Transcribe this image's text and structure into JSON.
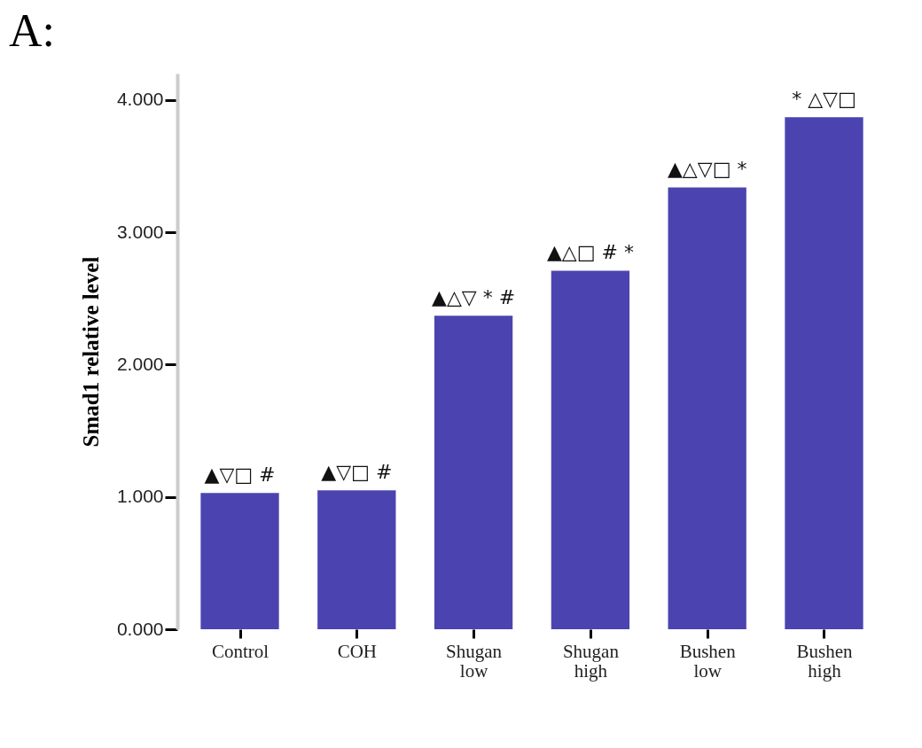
{
  "chart_data": {
    "type": "bar",
    "title": "A:",
    "ylabel": "Smad1 relative level",
    "categories": [
      "Control",
      "COH",
      "Shugan low",
      "Shugan high",
      "Bushen low",
      "Bushen high"
    ],
    "values": [
      1.03,
      1.05,
      2.37,
      2.71,
      3.34,
      3.87
    ],
    "color": "#4b44b0",
    "ylim": [
      0,
      4.2
    ],
    "yticks": [
      {
        "value": 0,
        "label": "0.000"
      },
      {
        "value": 1,
        "label": "1.000"
      },
      {
        "value": 2,
        "label": "2.000"
      },
      {
        "value": 3,
        "label": "3.000"
      },
      {
        "value": 4,
        "label": "4.000"
      }
    ],
    "grid": false,
    "annotations": [
      {
        "text": "▲▽□ #",
        "x": "Control",
        "y": 1.03
      },
      {
        "text": "▲▽□ #",
        "x": "COH",
        "y": 1.05
      },
      {
        "text": "▲△▽ * #",
        "x": "Shugan low",
        "y": 2.37
      },
      {
        "text": "▲△□ # *",
        "x": "Shugan high",
        "y": 2.71
      },
      {
        "text": "▲△▽□ *",
        "x": "Bushen low",
        "y": 3.34
      },
      {
        "text": "* △▽□",
        "x": "Bushen high",
        "y": 3.87
      }
    ]
  }
}
